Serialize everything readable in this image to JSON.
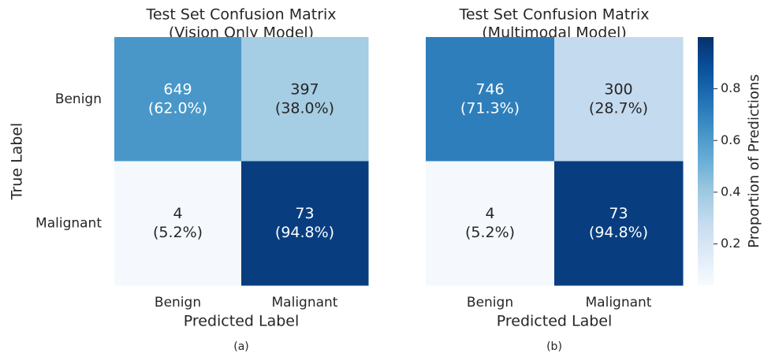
{
  "chart_data": [
    {
      "type": "heatmap",
      "title": "Test Set Confusion Matrix",
      "subtitle": "(Vision Only Model)",
      "x_categories": [
        "Benign",
        "Malignant"
      ],
      "y_categories": [
        "Benign",
        "Malignant"
      ],
      "xlabel": "Predicted Label",
      "ylabel": "True Label",
      "values": [
        [
          649,
          397
        ],
        [
          4,
          73
        ]
      ],
      "proportions": [
        [
          0.62,
          0.38
        ],
        [
          0.052,
          0.948
        ]
      ],
      "proportion_labels": [
        [
          "(62.0%)",
          "(38.0%)"
        ],
        [
          "(5.2%)",
          "(94.8%)"
        ]
      ],
      "caption": "(a)",
      "colormap": "Blues",
      "clim": [
        0.04,
        1.0
      ]
    },
    {
      "type": "heatmap",
      "title": "Test Set Confusion Matrix",
      "subtitle": "(Multimodal Model)",
      "x_categories": [
        "Benign",
        "Malignant"
      ],
      "xlabel": "Predicted Label",
      "values": [
        [
          746,
          300
        ],
        [
          4,
          73
        ]
      ],
      "proportions": [
        [
          0.713,
          0.287
        ],
        [
          0.052,
          0.948
        ]
      ],
      "proportion_labels": [
        [
          "(71.3%)",
          "(28.7%)"
        ],
        [
          "(5.2%)",
          "(94.8%)"
        ]
      ],
      "caption": "(b)",
      "colormap": "Blues",
      "clim": [
        0.04,
        1.0
      ],
      "colorbar": {
        "label": "Proportion of Predictions",
        "ticks": [
          0.2,
          0.4,
          0.6,
          0.8
        ]
      }
    }
  ]
}
